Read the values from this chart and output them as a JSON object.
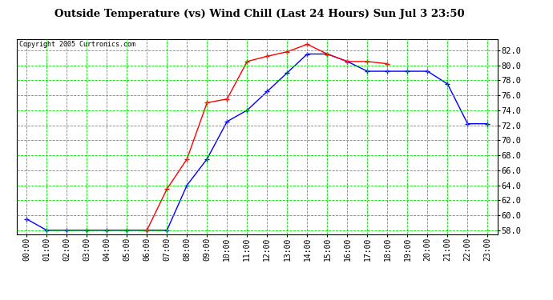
{
  "title": "Outside Temperature (vs) Wind Chill (Last 24 Hours) Sun Jul 3 23:50",
  "copyright": "Copyright 2005 Curtronics.com",
  "background_color": "#ffffff",
  "plot_bg_color": "#ffffff",
  "grid_color": "#00dd00",
  "x_labels": [
    "00:00",
    "01:00",
    "02:00",
    "03:00",
    "04:00",
    "05:00",
    "06:00",
    "07:00",
    "08:00",
    "09:00",
    "10:00",
    "11:00",
    "12:00",
    "13:00",
    "14:00",
    "15:00",
    "16:00",
    "17:00",
    "18:00",
    "19:00",
    "20:00",
    "21:00",
    "22:00",
    "23:00"
  ],
  "ylim": [
    57.5,
    83.5
  ],
  "yticks": [
    58.0,
    60.0,
    62.0,
    64.0,
    66.0,
    68.0,
    70.0,
    72.0,
    74.0,
    76.0,
    78.0,
    80.0,
    82.0
  ],
  "temp_color": "#ff0000",
  "windchill_color": "#0000ff",
  "temp_data": [
    null,
    null,
    null,
    null,
    null,
    null,
    58.0,
    63.5,
    67.5,
    75.0,
    75.5,
    80.5,
    81.2,
    81.8,
    82.8,
    81.5,
    80.5,
    80.5,
    80.2,
    null,
    null,
    null,
    null,
    null
  ],
  "windchill_data": [
    59.5,
    58.0,
    58.0,
    58.0,
    58.0,
    58.0,
    58.0,
    58.0,
    64.0,
    67.5,
    72.5,
    74.0,
    76.5,
    79.0,
    81.5,
    81.5,
    80.5,
    79.2,
    79.2,
    79.2,
    79.2,
    77.5,
    72.2,
    72.2
  ]
}
